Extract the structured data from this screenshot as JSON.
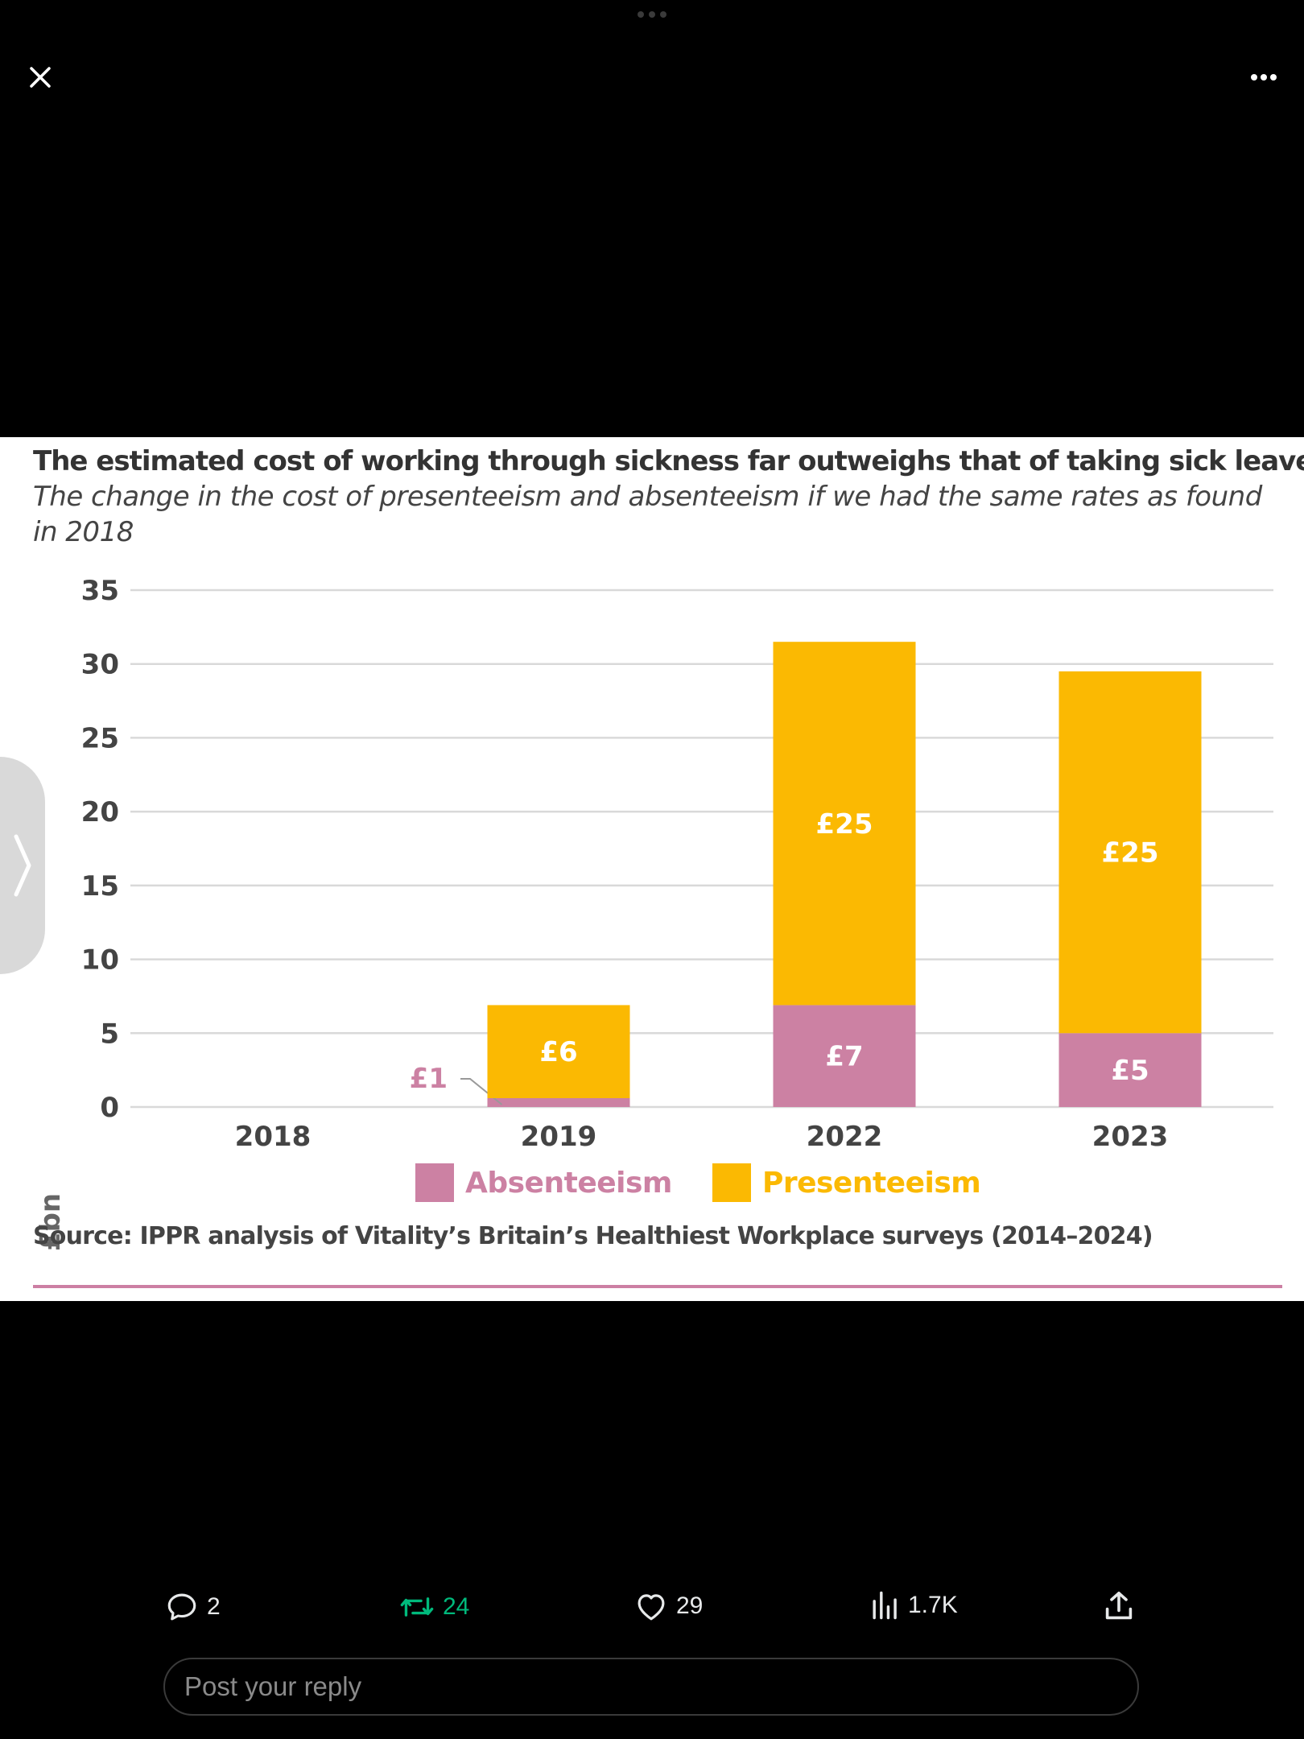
{
  "colors": {
    "absenteeism": "#cc81a3",
    "presenteeism": "#fbb902",
    "background": "#000000",
    "retweet_active": "#00ba7c"
  },
  "top_bar": {
    "close_icon": "close-icon",
    "more_icon": "more-horizontal-icon"
  },
  "chart": {
    "title": "The estimated cost of working through sickness far outweighs that of taking sick leave",
    "subtitle": "The change in the cost of presenteeism and absenteeism if we had the same rates as found in 2018",
    "ylabel": "£bn",
    "source": "Source: IPPR analysis of Vitality’s Britain’s Healthiest Workplace surveys (2014–2024)"
  },
  "chart_data": {
    "type": "bar",
    "stacked": true,
    "title": "The estimated cost of working through sickness far outweighs that of taking sick leave",
    "subtitle": "The change in the cost of presenteeism and absenteeism if we had the same rates as found in 2018",
    "xlabel": "",
    "ylabel": "£bn",
    "ylim": [
      0,
      35
    ],
    "yticks": [
      0,
      5,
      10,
      15,
      20,
      25,
      30,
      35
    ],
    "grid": true,
    "legend_position": "bottom",
    "categories": [
      "2018",
      "2019",
      "2022",
      "2023"
    ],
    "series": [
      {
        "name": "Absenteeism",
        "color": "#cc81a3",
        "values": [
          0,
          0.6,
          6.9,
          5.0
        ],
        "labels": [
          "",
          "£1",
          "£7",
          "£5"
        ]
      },
      {
        "name": "Presenteeism",
        "color": "#fbb902",
        "values": [
          0,
          6.3,
          24.6,
          24.5
        ],
        "labels": [
          "",
          "£6",
          "£25",
          "£25"
        ]
      }
    ]
  },
  "actions": {
    "reply_count": "2",
    "retweet_count": "24",
    "like_count": "29",
    "views_count": "1.7K"
  },
  "reply": {
    "placeholder": "Post your reply"
  }
}
